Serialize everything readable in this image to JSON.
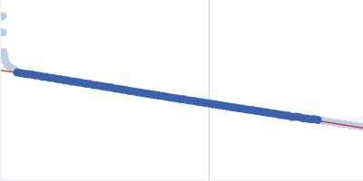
{
  "chart_data": {
    "type": "scatter",
    "tick_labels": false,
    "grid": false,
    "xlim": [
      0,
      400
    ],
    "ylim": [
      0,
      200
    ],
    "series": [
      {
        "type": "scatter",
        "marker": "circle",
        "color": "#bccde6",
        "x": [
          2,
          2,
          3,
          4,
          5,
          7,
          9,
          12,
          15
        ],
        "values": [
          182,
          164,
          142,
          137,
          132,
          128,
          126,
          124,
          123
        ]
      },
      {
        "type": "scatter",
        "marker": "circle",
        "color": "#bccde6",
        "x": [
          356,
          362,
          368,
          374,
          380,
          386,
          392,
          398
        ],
        "values": [
          65.8,
          64.9,
          63.9,
          63.0,
          62.0,
          61.1,
          60.2,
          59.3
        ]
      },
      {
        "type": "line",
        "marker": "none",
        "color": "#c9d2e3",
        "x": [
          230,
          230
        ],
        "values": [
          0,
          200
        ]
      },
      {
        "type": "line",
        "marker": "none",
        "color": "#d6242b",
        "x": [
          0,
          400
        ],
        "values": [
          122,
          58
        ]
      },
      {
        "type": "scatter",
        "marker": "circle",
        "color": "#3a63ae",
        "x": [
          18,
          22,
          26,
          30,
          34,
          38,
          42,
          46,
          50,
          54,
          58,
          62,
          66,
          70,
          74,
          78,
          82,
          86,
          90,
          94,
          98,
          102,
          106,
          110,
          114,
          118,
          122,
          126,
          130,
          134,
          138,
          142,
          146,
          150,
          154,
          158,
          162,
          166,
          170,
          174,
          178,
          182,
          186,
          190,
          194,
          198,
          202,
          206,
          210,
          214,
          218,
          222,
          226,
          230,
          234,
          238,
          242,
          246,
          250,
          254,
          258,
          262,
          266,
          270,
          274,
          278,
          282,
          286,
          290,
          294,
          298,
          302,
          306,
          310,
          314,
          318,
          322,
          326,
          330,
          334,
          338,
          342,
          346,
          350
        ],
        "values": [
          119.5,
          118.8,
          118.2,
          117.6,
          117.4,
          116.3,
          115.9,
          114.8,
          114.5,
          113.6,
          113.4,
          112.3,
          111.9,
          111.0,
          110.6,
          109.6,
          109.3,
          108.5,
          107.9,
          107.0,
          106.7,
          105.6,
          105.2,
          104.6,
          103.8,
          103.2,
          102.7,
          101.6,
          101.3,
          100.5,
          99.9,
          99.0,
          98.6,
          97.8,
          97.2,
          96.4,
          96.0,
          95.1,
          94.6,
          93.9,
          93.4,
          92.7,
          92.0,
          91.3,
          90.8,
          89.9,
          89.6,
          88.8,
          88.3,
          87.6,
          86.8,
          86.4,
          85.7,
          85.2,
          84.3,
          83.8,
          83.2,
          82.5,
          81.9,
          81.2,
          80.7,
          79.9,
          79.4,
          78.6,
          78.1,
          77.6,
          76.8,
          76.3,
          75.5,
          75.0,
          74.3,
          73.8,
          73.1,
          72.4,
          71.9,
          71.3,
          70.0,
          70.4,
          69.8,
          68.5,
          68.3,
          67.6,
          67.5,
          66.9
        ]
      }
    ]
  }
}
